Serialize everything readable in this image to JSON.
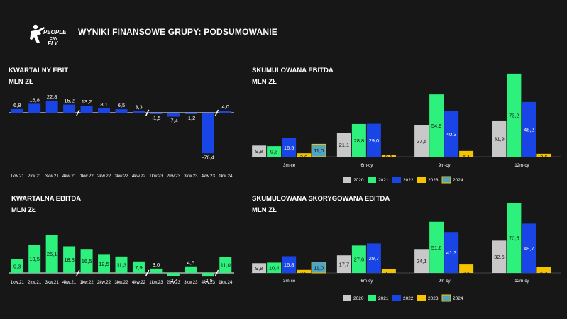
{
  "header": {
    "brand_line1": "PEOPLE",
    "brand_line2": "CAN",
    "brand_line3": "FLY",
    "title": "WYNIKI FINANSOWE GRUPY: PODSUMOWANIE"
  },
  "colors": {
    "y2020": "#c8c8c8",
    "y2021": "#2ef07c",
    "y2022": "#1a45e6",
    "y2023": "#f5c400",
    "y2024": "#4fa5c2",
    "positive_ebit": "#1a45e6",
    "green": "#2ef07c"
  },
  "chart_data": [
    {
      "id": "ebit",
      "type": "bar",
      "title": "KWARTALNY EBIT",
      "subtitle": "MLN ZŁ",
      "categories": [
        "1kw.21",
        "2kw.21",
        "3kw.21",
        "4kw.21",
        "1kw.22",
        "2kw.22",
        "3kw.22",
        "4kw.22",
        "1kw.23",
        "2kw.23",
        "3kw.23",
        "4kw.23",
        "1kw.24"
      ],
      "values": [
        6.8,
        16.8,
        22.8,
        15.2,
        13.2,
        8.1,
        6.5,
        3.3,
        -1.5,
        -7.4,
        -1.2,
        -76.4,
        4.0
      ],
      "labels": [
        "6,8",
        "16,8",
        "22,8",
        "15,2",
        "13,2",
        "8,1",
        "6,5",
        "3,3",
        "-1,5",
        "-7,4",
        "-1,2",
        "-76,4",
        "4,0"
      ]
    },
    {
      "id": "ebitda",
      "type": "bar",
      "title": "KWARTALNA EBITDA",
      "subtitle": "MLN ZŁ",
      "categories": [
        "1kw.21",
        "2kw.21",
        "3kw.21",
        "4kw.21",
        "1kw.22",
        "2kw.22",
        "3kw.22",
        "4kw.22",
        "1kw.23",
        "2kw.23",
        "3kw.23",
        "4kw.23",
        "1kw.24"
      ],
      "values": [
        9.3,
        19.5,
        26.1,
        18.3,
        16.5,
        12.5,
        11.3,
        7.9,
        3.0,
        -2.4,
        4.5,
        -2.5,
        11.0
      ],
      "labels": [
        "9,3",
        "19,5",
        "26,1",
        "18,3",
        "16,5",
        "12,5",
        "11,3",
        "7,9",
        "3,0",
        "-2,4",
        "4,5",
        "-2,5",
        "11,0"
      ]
    },
    {
      "id": "cum_ebitda",
      "type": "bar",
      "title": "SKUMULOWANA EBITDA",
      "subtitle": "MLN ZŁ",
      "categories": [
        "3m-ce",
        "6m-cy",
        "9m-cy",
        "12m-cy"
      ],
      "series": [
        {
          "name": "2020",
          "color_key": "y2020",
          "values": [
            9.8,
            21.1,
            27.5,
            31.9
          ],
          "labels": [
            "9,8",
            "21,1",
            "27,5",
            "31,9"
          ]
        },
        {
          "name": "2021",
          "color_key": "y2021",
          "values": [
            9.3,
            28.8,
            54.9,
            73.2
          ],
          "labels": [
            "9,3",
            "28,8",
            "54,9",
            "73,2"
          ]
        },
        {
          "name": "2022",
          "color_key": "y2022",
          "values": [
            16.5,
            29.0,
            40.3,
            48.2
          ],
          "labels": [
            "16,5",
            "29,0",
            "40,3",
            "48,2"
          ]
        },
        {
          "name": "2023",
          "color_key": "y2023",
          "values": [
            3.0,
            0.6,
            5.1,
            2.6
          ],
          "labels": [
            "3,0",
            "0,6",
            "5,1",
            "2,6"
          ]
        },
        {
          "name": "2024",
          "color_key": "y2024",
          "values": [
            11.0,
            null,
            null,
            null
          ],
          "labels": [
            "11,0",
            "",
            "",
            ""
          ]
        }
      ]
    },
    {
      "id": "cum_adj_ebitda",
      "type": "bar",
      "title": "SKUMULOWANA SKORYGOWANA EBITDA",
      "subtitle": "MLN ZŁ",
      "categories": [
        "3m-ce",
        "6m-cy",
        "9m-cy",
        "12m-cy"
      ],
      "series": [
        {
          "name": "2020",
          "color_key": "y2020",
          "values": [
            9.8,
            17.7,
            24.1,
            32.6
          ],
          "labels": [
            "9,8",
            "17,7",
            "24,1",
            "32,6"
          ]
        },
        {
          "name": "2021",
          "color_key": "y2021",
          "values": [
            10.4,
            27.6,
            51.6,
            70.5
          ],
          "labels": [
            "10,4",
            "27,6",
            "51,6",
            "70,5"
          ]
        },
        {
          "name": "2022",
          "color_key": "y2022",
          "values": [
            16.8,
            29.7,
            41.3,
            49.7
          ],
          "labels": [
            "16,8",
            "29,7",
            "41,3",
            "49,7"
          ]
        },
        {
          "name": "2023",
          "color_key": "y2023",
          "values": [
            3.0,
            4.0,
            8.5,
            6.2
          ],
          "labels": [
            "3,0",
            "4,0",
            "8,5",
            "6,2"
          ]
        },
        {
          "name": "2024",
          "color_key": "y2024",
          "values": [
            11.0,
            null,
            null,
            null
          ],
          "labels": [
            "11,0",
            "",
            "",
            ""
          ]
        }
      ]
    }
  ]
}
